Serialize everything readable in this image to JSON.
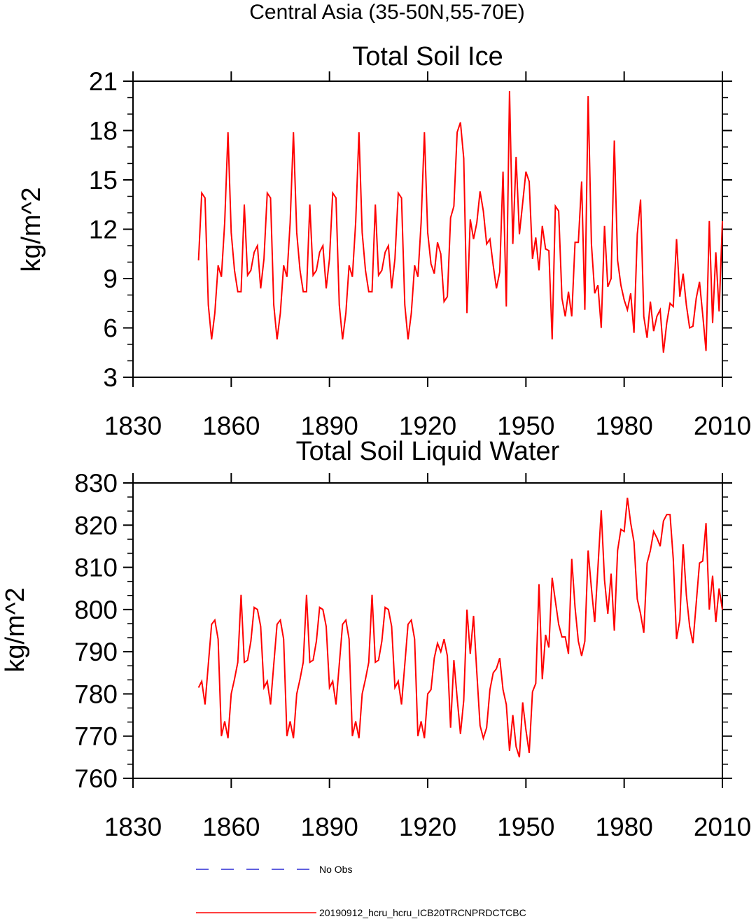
{
  "figure_title": "Central Asia (35-50N,55-70E)",
  "chart_data": [
    {
      "type": "line",
      "title": "Total Soil Ice",
      "xlabel": "",
      "ylabel": "kg/m^2",
      "xlim": [
        1830,
        2010
      ],
      "ylim": [
        3,
        21
      ],
      "xticks": [
        1830,
        1860,
        1890,
        1920,
        1950,
        1980,
        2010
      ],
      "yticks": [
        3,
        6,
        9,
        12,
        15,
        18,
        21
      ],
      "series": [
        {
          "name": "20190912_hcru_hcru_ICB20TRCNPRDCTCBC",
          "color": "#ff0000",
          "x": [
            1850,
            1851,
            1852,
            1853,
            1854,
            1855,
            1856,
            1857,
            1858,
            1859,
            1860,
            1861,
            1862,
            1863,
            1864,
            1865,
            1866,
            1867,
            1868,
            1869,
            1870,
            1871,
            1872,
            1873,
            1874,
            1875,
            1876,
            1877,
            1878,
            1879,
            1880,
            1881,
            1882,
            1883,
            1884,
            1885,
            1886,
            1887,
            1888,
            1889,
            1890,
            1891,
            1892,
            1893,
            1894,
            1895,
            1896,
            1897,
            1898,
            1899,
            1900,
            1901,
            1902,
            1903,
            1904,
            1905,
            1906,
            1907,
            1908,
            1909,
            1910,
            1911,
            1912,
            1913,
            1914,
            1915,
            1916,
            1917,
            1918,
            1919,
            1920,
            1921,
            1922,
            1923,
            1924,
            1925,
            1926,
            1927,
            1928,
            1929,
            1930,
            1931,
            1932,
            1933,
            1934,
            1935,
            1936,
            1937,
            1938,
            1939,
            1940,
            1941,
            1942,
            1943,
            1944,
            1945,
            1946,
            1947,
            1948,
            1949,
            1950,
            1951,
            1952,
            1953,
            1954,
            1955,
            1956,
            1957,
            1958,
            1959,
            1960,
            1961,
            1962,
            1963,
            1964,
            1965,
            1966,
            1967,
            1968,
            1969,
            1970,
            1971,
            1972,
            1973,
            1974,
            1975,
            1976,
            1977,
            1978,
            1979,
            1980,
            1981,
            1982,
            1983,
            1984,
            1985,
            1986,
            1987,
            1988,
            1989,
            1990,
            1991,
            1992,
            1993,
            1994,
            1995,
            1996,
            1997,
            1998,
            1999,
            2000,
            2001,
            2002,
            2003,
            2004,
            2005,
            2006,
            2007,
            2008,
            2009,
            2010
          ],
          "y": [
            10.1,
            14.2,
            13.9,
            7.4,
            5.3,
            6.9,
            9.8,
            9.1,
            12.4,
            17.9,
            11.8,
            9.5,
            8.2,
            8.2,
            13.5,
            9.2,
            9.5,
            10.6,
            11.0,
            8.4,
            10.2,
            14.2,
            13.9,
            7.4,
            5.3,
            6.9,
            9.8,
            9.1,
            12.4,
            17.9,
            11.8,
            9.5,
            8.2,
            8.2,
            13.5,
            9.2,
            9.5,
            10.6,
            11.0,
            8.4,
            10.2,
            14.2,
            13.9,
            7.4,
            5.3,
            6.9,
            9.8,
            9.1,
            12.4,
            17.9,
            11.8,
            9.5,
            8.2,
            8.2,
            13.5,
            9.2,
            9.5,
            10.6,
            11.0,
            8.4,
            10.2,
            14.2,
            13.9,
            7.4,
            5.3,
            6.9,
            9.8,
            9.1,
            12.4,
            17.9,
            11.8,
            9.9,
            9.3,
            11.2,
            10.5,
            7.6,
            7.9,
            12.7,
            13.4,
            17.9,
            18.5,
            16.3,
            6.9,
            12.6,
            11.4,
            12.4,
            14.3,
            13.1,
            11.1,
            11.4,
            9.8,
            8.4,
            9.4,
            15.5,
            7.3,
            20.4,
            11.1,
            16.4,
            11.7,
            13.6,
            15.5,
            14.9,
            10.2,
            11.5,
            9.5,
            12.2,
            10.8,
            10.7,
            5.3,
            13.4,
            13.1,
            7.8,
            6.7,
            8.2,
            6.7,
            11.2,
            11.2,
            14.9,
            7.1,
            20.1,
            11.1,
            8.1,
            8.6,
            6.0,
            12.2,
            8.5,
            9.0,
            17.4,
            10.1,
            8.6,
            7.7,
            7.1,
            8.1,
            5.7,
            11.7,
            13.8,
            6.7,
            5.4,
            7.6,
            5.8,
            6.7,
            7.1,
            4.5,
            6.3,
            7.5,
            7.3,
            11.4,
            7.9,
            9.3,
            7.4,
            6.0,
            6.1,
            7.8,
            8.8,
            6.8,
            4.6,
            12.5,
            6.3,
            10.6,
            7.0,
            12.5
          ]
        }
      ]
    },
    {
      "type": "line",
      "title": "Total Soil Liquid Water",
      "xlabel": "",
      "ylabel": "kg/m^2",
      "xlim": [
        1830,
        2010
      ],
      "ylim": [
        760,
        830
      ],
      "xticks": [
        1830,
        1860,
        1890,
        1920,
        1950,
        1980,
        2010
      ],
      "yticks": [
        760,
        770,
        780,
        790,
        800,
        810,
        820,
        830
      ],
      "series": [
        {
          "name": "20190912_hcru_hcru_ICB20TRCNPRDCTCBC",
          "color": "#ff0000",
          "x": [
            1850,
            1851,
            1852,
            1853,
            1854,
            1855,
            1856,
            1857,
            1858,
            1859,
            1860,
            1861,
            1862,
            1863,
            1864,
            1865,
            1866,
            1867,
            1868,
            1869,
            1870,
            1871,
            1872,
            1873,
            1874,
            1875,
            1876,
            1877,
            1878,
            1879,
            1880,
            1881,
            1882,
            1883,
            1884,
            1885,
            1886,
            1887,
            1888,
            1889,
            1890,
            1891,
            1892,
            1893,
            1894,
            1895,
            1896,
            1897,
            1898,
            1899,
            1900,
            1901,
            1902,
            1903,
            1904,
            1905,
            1906,
            1907,
            1908,
            1909,
            1910,
            1911,
            1912,
            1913,
            1914,
            1915,
            1916,
            1917,
            1918,
            1919,
            1920,
            1921,
            1922,
            1923,
            1924,
            1925,
            1926,
            1927,
            1928,
            1929,
            1930,
            1931,
            1932,
            1933,
            1934,
            1935,
            1936,
            1937,
            1938,
            1939,
            1940,
            1941,
            1942,
            1943,
            1944,
            1945,
            1946,
            1947,
            1948,
            1949,
            1950,
            1951,
            1952,
            1953,
            1954,
            1955,
            1956,
            1957,
            1958,
            1959,
            1960,
            1961,
            1962,
            1963,
            1964,
            1965,
            1966,
            1967,
            1968,
            1969,
            1970,
            1971,
            1972,
            1973,
            1974,
            1975,
            1976,
            1977,
            1978,
            1979,
            1980,
            1981,
            1982,
            1983,
            1984,
            1985,
            1986,
            1987,
            1988,
            1989,
            1990,
            1991,
            1992,
            1993,
            1994,
            1995,
            1996,
            1997,
            1998,
            1999,
            2000,
            2001,
            2002,
            2003,
            2004,
            2005,
            2006,
            2007,
            2008,
            2009,
            2010
          ],
          "y": [
            781.5,
            783.0,
            777.5,
            787.0,
            796.5,
            797.5,
            793.0,
            770.0,
            773.5,
            769.5,
            780.0,
            783.5,
            787.5,
            803.5,
            787.5,
            788.0,
            792.5,
            800.5,
            800.0,
            796.0,
            781.5,
            783.0,
            777.5,
            787.0,
            796.5,
            797.5,
            793.0,
            770.0,
            773.5,
            769.5,
            780.0,
            783.5,
            787.5,
            803.5,
            787.5,
            788.0,
            792.5,
            800.5,
            800.0,
            796.0,
            781.5,
            783.0,
            777.5,
            787.0,
            796.5,
            797.5,
            793.0,
            770.0,
            773.5,
            769.5,
            780.0,
            783.5,
            787.5,
            803.5,
            787.5,
            788.0,
            792.5,
            800.5,
            800.0,
            796.0,
            781.5,
            783.0,
            777.5,
            787.0,
            796.5,
            797.5,
            793.0,
            770.0,
            773.5,
            769.5,
            780.0,
            781.0,
            788.5,
            792.0,
            790.0,
            793.0,
            789.0,
            772.0,
            788.0,
            779.0,
            770.5,
            778.5,
            800.0,
            789.5,
            798.5,
            785.0,
            772.5,
            769.5,
            772.0,
            781.0,
            785.0,
            786.0,
            788.5,
            781.0,
            777.5,
            766.5,
            775.0,
            767.5,
            765.0,
            778.0,
            771.5,
            766.0,
            780.5,
            782.5,
            806.0,
            783.5,
            794.0,
            791.0,
            807.5,
            802.0,
            796.5,
            793.5,
            793.5,
            789.5,
            812.0,
            800.5,
            792.5,
            789.0,
            792.5,
            814.0,
            805.0,
            797.0,
            810.0,
            823.5,
            807.0,
            799.0,
            808.5,
            795.0,
            814.0,
            819.0,
            818.5,
            826.5,
            820.5,
            816.0,
            802.5,
            799.0,
            794.5,
            811.0,
            814.0,
            818.5,
            817.0,
            815.0,
            821.0,
            822.5,
            822.5,
            812.0,
            793.0,
            797.5,
            815.5,
            803.5,
            796.0,
            792.0,
            801.5,
            811.0,
            811.5,
            820.5,
            800.0,
            808.0,
            797.0,
            805.0,
            800.0
          ]
        }
      ]
    }
  ],
  "legend": [
    {
      "label": "No Obs",
      "color": "#0000cc",
      "style": "dashed"
    },
    {
      "label": "20190912_hcru_hcru_ICB20TRCNPRDCTCBC",
      "color": "#ff0000",
      "style": "solid"
    }
  ]
}
